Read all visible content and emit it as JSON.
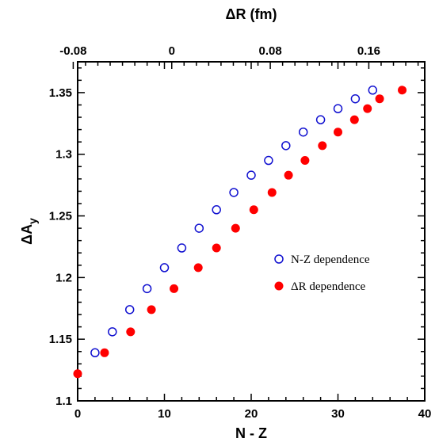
{
  "chart_data": {
    "type": "scatter",
    "xlabel": "N - Z",
    "x2label": "ΔR (fm)",
    "ylabel_main": "ΔA",
    "ylabel_sub": "y",
    "xlim": [
      0,
      40
    ],
    "x2lim": [
      -0.0764,
      0.2054
    ],
    "ylim": [
      1.1,
      1.375
    ],
    "x_ticks": [
      0,
      10,
      20,
      30,
      40
    ],
    "x_tick_labels": [
      "0",
      "10",
      "20",
      "30",
      "40"
    ],
    "x2_ticks": [
      -0.08,
      0,
      0.08,
      0.16
    ],
    "x2_tick_labels": [
      "-0.08",
      "0",
      "0.08",
      "0.16"
    ],
    "y_ticks": [
      1.1,
      1.15,
      1.2,
      1.25,
      1.3,
      1.35
    ],
    "y_tick_labels": [
      "1.1",
      "1.15",
      "1.2",
      "1.25",
      "1.3",
      "1.35"
    ],
    "grid": false,
    "legend_position": "center-right",
    "series": [
      {
        "name": "N-Z dependence",
        "marker": "open-circle",
        "color": "#1010d0",
        "x": [
          2,
          4,
          6,
          8,
          10,
          12,
          14,
          16,
          18,
          20,
          22,
          24,
          26,
          28,
          30,
          32,
          34
        ],
        "y": [
          1.139,
          1.156,
          1.174,
          1.191,
          1.208,
          1.224,
          1.24,
          1.255,
          1.269,
          1.283,
          1.295,
          1.307,
          1.318,
          1.328,
          1.337,
          1.345,
          1.352
        ]
      },
      {
        "name": "ΔR dependence",
        "marker": "filled-circle",
        "color": "#ff0000",
        "x": [
          0,
          3.1,
          6.1,
          8.5,
          11.1,
          13.9,
          16,
          18.2,
          20.3,
          22.4,
          24.3,
          26.2,
          28.2,
          30,
          31.9,
          33.4,
          34.8,
          37.4
        ],
        "y": [
          1.122,
          1.139,
          1.156,
          1.174,
          1.191,
          1.208,
          1.224,
          1.24,
          1.255,
          1.269,
          1.283,
          1.295,
          1.307,
          1.318,
          1.328,
          1.337,
          1.345,
          1.352
        ]
      }
    ]
  }
}
